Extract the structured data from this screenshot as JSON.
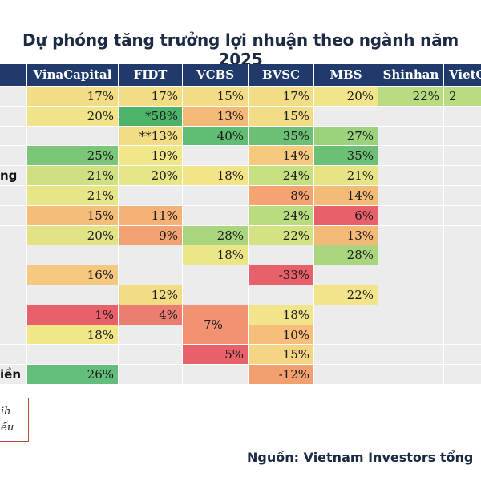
{
  "title": "Dự phóng tăng trưởng lợi nhuận theo ngành năm 2025",
  "source": "Nguồn: Vietnam Investors tổng",
  "legend_box": {
    "line1": "ih",
    "line2": "ếu"
  },
  "colors": {
    "header_bg": "#1f3a6b",
    "header_text": "#ffffff",
    "empty_cell": "#ececec",
    "scale_low": "#e8616a",
    "scale_mid": "#f4e38a",
    "scale_high": "#63be7b"
  },
  "chart_data": {
    "type": "table",
    "title": "Dự phóng tăng trưởng lợi nhuận theo ngành năm 2025",
    "columns": [
      "VinaCapital",
      "FIDT",
      "VCBS",
      "BVSC",
      "MBS",
      "Shinhan",
      "VietC"
    ],
    "row_labels": [
      "",
      "",
      "",
      "",
      "ng",
      "",
      "",
      "",
      "",
      "",
      "",
      "",
      "",
      "",
      "iền"
    ],
    "rows": [
      [
        "17%",
        "17%",
        "15%",
        "17%",
        "20%",
        "22%",
        "2"
      ],
      [
        "20%",
        "*58%",
        "13%",
        "15%",
        "",
        "",
        ""
      ],
      [
        "",
        "**13%",
        "40%",
        "35%",
        "27%",
        "",
        ""
      ],
      [
        "25%",
        "19%",
        "",
        "14%",
        "35%",
        "",
        ""
      ],
      [
        "21%",
        "20%",
        "18%",
        "24%",
        "21%",
        "",
        ""
      ],
      [
        "21%",
        "",
        "",
        "8%",
        "14%",
        "",
        ""
      ],
      [
        "15%",
        "11%",
        "",
        "24%",
        "6%",
        "",
        ""
      ],
      [
        "20%",
        "9%",
        "28%",
        "22%",
        "13%",
        "",
        ""
      ],
      [
        "",
        "",
        "18%",
        "",
        "28%",
        "",
        ""
      ],
      [
        "16%",
        "",
        "",
        "-33%",
        "",
        "",
        ""
      ],
      [
        "",
        "12%",
        "",
        "",
        "22%",
        "",
        ""
      ],
      [
        "1%",
        "4%",
        "7%",
        "18%",
        "",
        "",
        ""
      ],
      [
        "18%",
        "",
        "",
        "10%",
        "",
        "",
        ""
      ],
      [
        "",
        "",
        "5%",
        "15%",
        "",
        "",
        ""
      ],
      [
        "26%",
        "",
        "",
        "-12%",
        "",
        "",
        ""
      ]
    ],
    "merged_cells": [
      {
        "column": "VCBS",
        "rows": [
          11,
          12
        ],
        "value": "7%"
      }
    ],
    "colors": [
      [
        "#f3dc86",
        "#f3dc86",
        "#f3dc86",
        "#f3dc86",
        "#f2e48a",
        "#b9dc80",
        "#b9dc80"
      ],
      [
        "#f0e388",
        "#4bb36a",
        "#f5b977",
        "#f3dc86",
        "",
        "",
        ""
      ],
      [
        "",
        "#f3dc86",
        "#5fbd74",
        "#6cc076",
        "#9bd27b",
        "",
        ""
      ],
      [
        "#7cc677",
        "#f1e688",
        "",
        "#f5c97e",
        "#6cc076",
        "",
        ""
      ],
      [
        "#cfe083",
        "#e6e587",
        "#f3e488",
        "#c5df81",
        "#e7e486",
        "",
        ""
      ],
      [
        "#e6e587",
        "",
        "",
        "#f6a271",
        "#f3ba78",
        "",
        ""
      ],
      [
        "#f4bd7a",
        "#f6b177",
        "",
        "#b9dc80",
        "#e8616a",
        "",
        ""
      ],
      [
        "#e1e386",
        "#f2a272",
        "#a8d57d",
        "#d4e283",
        "#f5b977",
        "",
        ""
      ],
      [
        "",
        "",
        "#eae587",
        "",
        "#a8d57d",
        "",
        ""
      ],
      [
        "#f5c880",
        "",
        "",
        "#e8616a",
        "",
        "",
        ""
      ],
      [
        "",
        "#f3dc86",
        "",
        "",
        "#f2e48a",
        "",
        ""
      ],
      [
        "#e8616a",
        "#eb7d71",
        "#f29272",
        "#f2e48a",
        "",
        "",
        ""
      ],
      [
        "#f1e688",
        "",
        "",
        "#f6bd7b",
        "",
        "",
        ""
      ],
      [
        "",
        "",
        "#e8616a",
        "#f4d583",
        "",
        "",
        ""
      ],
      [
        "#63be7b",
        "",
        "",
        "#f3a071",
        "",
        "",
        ""
      ]
    ]
  }
}
